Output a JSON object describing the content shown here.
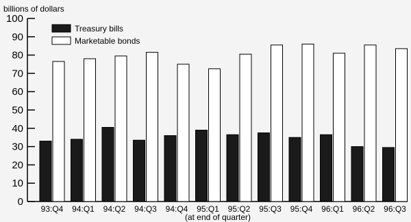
{
  "chart_data": {
    "type": "bar",
    "ylabel": "billions of dollars",
    "xlabel": "(at end of quarter)",
    "ylim": [
      0,
      100
    ],
    "yticks": [
      0,
      10,
      20,
      30,
      40,
      50,
      60,
      70,
      80,
      90,
      100
    ],
    "grid": false,
    "legend_position": "top-left",
    "categories": [
      "93:Q4",
      "94:Q1",
      "94:Q2",
      "94:Q3",
      "94:Q4",
      "95:Q1",
      "95:Q2",
      "95:Q3",
      "95:Q4",
      "96:Q1",
      "96:Q2",
      "96:Q3"
    ],
    "series": [
      {
        "name": "Treasury bills",
        "color": "#1a1a1a",
        "values": [
          33,
          34,
          40.5,
          33.5,
          36,
          39,
          36.5,
          37.5,
          35,
          36.5,
          30,
          29.5
        ]
      },
      {
        "name": "Marketable bonds",
        "color": "#ffffff",
        "values": [
          76.5,
          78,
          79.5,
          81.5,
          75,
          72.5,
          80.5,
          85.5,
          86,
          81,
          85.5,
          83.5
        ]
      }
    ]
  }
}
